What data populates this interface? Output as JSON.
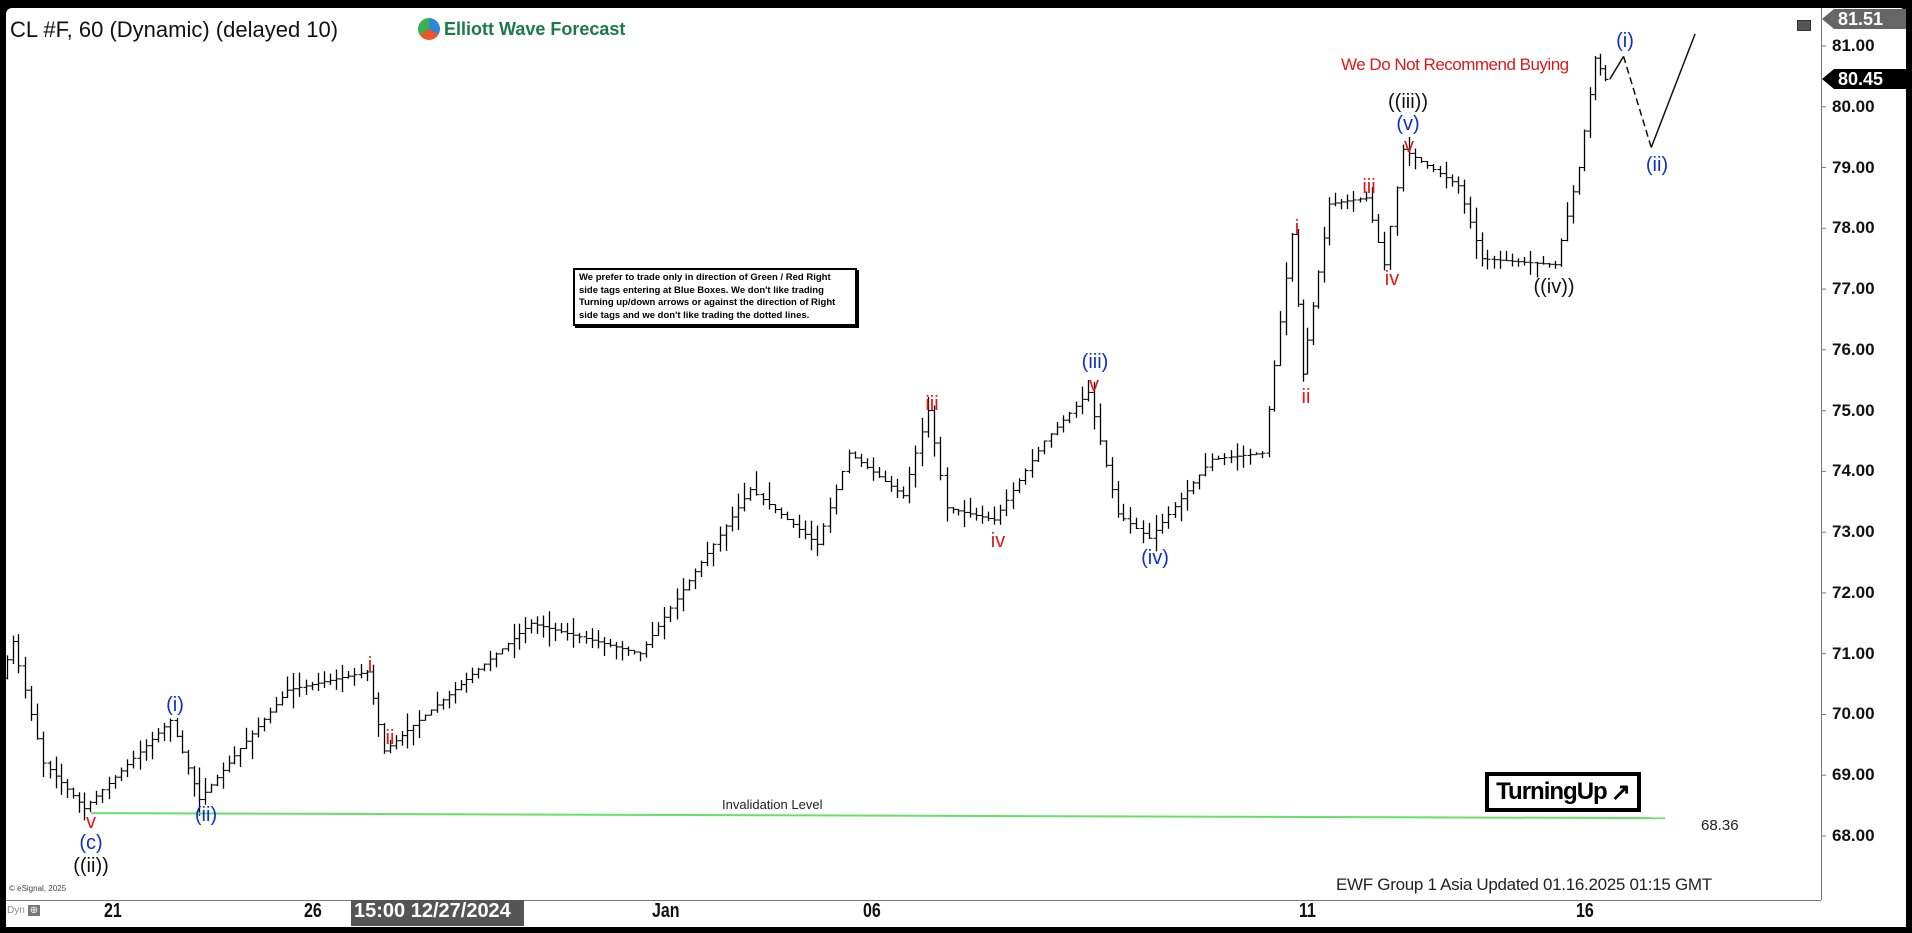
{
  "header": {
    "title": "CL #F, 60 (Dynamic) (delayed 10)",
    "logo_text": "Elliott Wave Forecast"
  },
  "price_tags": {
    "high": "81.51",
    "last": "80.45"
  },
  "notice": "We prefer to trade only in direction of Green / Red Right side tags entering at Blue Boxes. We don't like trading Turning up/down arrows or against the direction of Right side tags and we don't like trading the dotted lines.",
  "recommendation": "We Do Not Recommend Buying",
  "turning_label": "TurningUp",
  "turning_icon": "arrow-up-right-icon",
  "footer": "EWF Group 1 Asia Updated 01.16.2025 01:15 GMT",
  "copyright": "© eSignal, 2025",
  "dyn_label": "Dyn",
  "crosshair_time": "15:00 12/27/2024",
  "colors": {
    "red": "#e01818",
    "blue": "#1030c8",
    "black": "#111111",
    "invalidation": "#66e066"
  },
  "chart_data": {
    "type": "ohlc",
    "symbol": "CL #F",
    "interval": "60",
    "y_ticks": [
      "81.00",
      "80.00",
      "79.00",
      "78.00",
      "77.00",
      "76.00",
      "75.00",
      "74.00",
      "73.00",
      "72.00",
      "71.00",
      "70.00",
      "69.00",
      "68.00"
    ],
    "ylim": [
      67.3,
      81.6
    ],
    "x_ticks": [
      {
        "label": "21",
        "date": "2024-12-21T00:00"
      },
      {
        "label": "26",
        "date": "2024-12-26T00:00"
      },
      {
        "label": "Jan",
        "date": "2025-01-01T00:00"
      },
      {
        "label": "06",
        "date": "2025-01-06T00:00"
      },
      {
        "label": "11",
        "date": "2025-01-11T00:00"
      },
      {
        "label": "16",
        "date": "2025-01-16T00:00"
      }
    ],
    "price_path": [
      [
        "2024-12-18T10:00",
        70.6
      ],
      [
        "2024-12-18T17:00",
        71.2
      ],
      [
        "2024-12-19T08:00",
        69.6
      ],
      [
        "2024-12-19T12:00",
        69.2
      ],
      [
        "2024-12-20T12:00",
        68.45
      ],
      [
        "2024-12-22T16:00",
        69.9
      ],
      [
        "2024-12-23T09:00",
        68.6
      ],
      [
        "2024-12-25T14:00",
        70.4
      ],
      [
        "2024-12-27T02:00",
        70.7
      ],
      [
        "2024-12-27T09:00",
        69.4
      ],
      [
        "2024-12-29T22:00",
        71.5
      ],
      [
        "2024-12-31T19:00",
        71.0
      ],
      [
        "2025-01-03T08:00",
        73.7
      ],
      [
        "2025-01-04T22:00",
        72.8
      ],
      [
        "2025-01-05T16:00",
        74.3
      ],
      [
        "2025-01-06T11:00",
        73.6
      ],
      [
        "2025-01-06T18:00",
        75.0
      ],
      [
        "2025-01-06T23:00",
        73.4
      ],
      [
        "2025-01-07T12:00",
        73.2
      ],
      [
        "2025-01-08T02:00",
        74.5
      ],
      [
        "2025-01-08T14:00",
        75.3
      ],
      [
        "2025-01-08T22:00",
        73.3
      ],
      [
        "2025-01-09T07:00",
        72.9
      ],
      [
        "2025-01-10T00:00",
        74.2
      ],
      [
        "2025-01-10T14:00",
        74.3
      ],
      [
        "2025-01-10T22:00",
        77.9
      ],
      [
        "2025-01-11T01:00",
        75.6
      ],
      [
        "2025-01-11T13:00",
        78.4
      ],
      [
        "2025-01-12T05:00",
        78.5
      ],
      [
        "2025-01-12T13:00",
        77.4
      ],
      [
        "2025-01-12T21:00",
        79.3
      ],
      [
        "2025-01-13T21:00",
        78.7
      ],
      [
        "2025-01-14T07:00",
        77.5
      ],
      [
        "2025-01-15T15:00",
        77.4
      ],
      [
        "2025-01-16T01:00",
        79.0
      ],
      [
        "2025-01-16T08:00",
        80.8
      ],
      [
        "2025-01-16T12:00",
        80.45
      ]
    ],
    "projection": [
      [
        "2025-01-16T12:00",
        80.45
      ],
      [
        "2025-01-16T18:00",
        80.83
      ],
      [
        "2025-01-17T06:00",
        79.33
      ],
      [
        "2025-01-18T01:00",
        81.2
      ]
    ],
    "invalidation": {
      "label": "Invalidation Level",
      "value": "68.36",
      "price": 68.36
    },
    "wave_labels": [
      {
        "text": "v",
        "color": "red"
      },
      {
        "text": "(c)",
        "color": "blue"
      },
      {
        "text": "((ii))",
        "color": "black"
      },
      {
        "text": "(i)",
        "color": "blue"
      },
      {
        "text": "(ii)",
        "color": "blue"
      },
      {
        "text": "i",
        "color": "red"
      },
      {
        "text": "ii",
        "color": "red"
      },
      {
        "text": "iii",
        "color": "red"
      },
      {
        "text": "iv",
        "color": "red"
      },
      {
        "text": "(iii)",
        "color": "blue"
      },
      {
        "text": "v",
        "color": "red"
      },
      {
        "text": "(iv)",
        "color": "blue"
      },
      {
        "text": "i",
        "color": "red"
      },
      {
        "text": "ii",
        "color": "red"
      },
      {
        "text": "iii",
        "color": "red"
      },
      {
        "text": "iv",
        "color": "red"
      },
      {
        "text": "((iii))",
        "color": "black"
      },
      {
        "text": "(v)",
        "color": "blue"
      },
      {
        "text": "v",
        "color": "red"
      },
      {
        "text": "((iv))",
        "color": "black"
      },
      {
        "text": "(i)",
        "color": "blue"
      },
      {
        "text": "(ii)",
        "color": "blue"
      }
    ]
  }
}
